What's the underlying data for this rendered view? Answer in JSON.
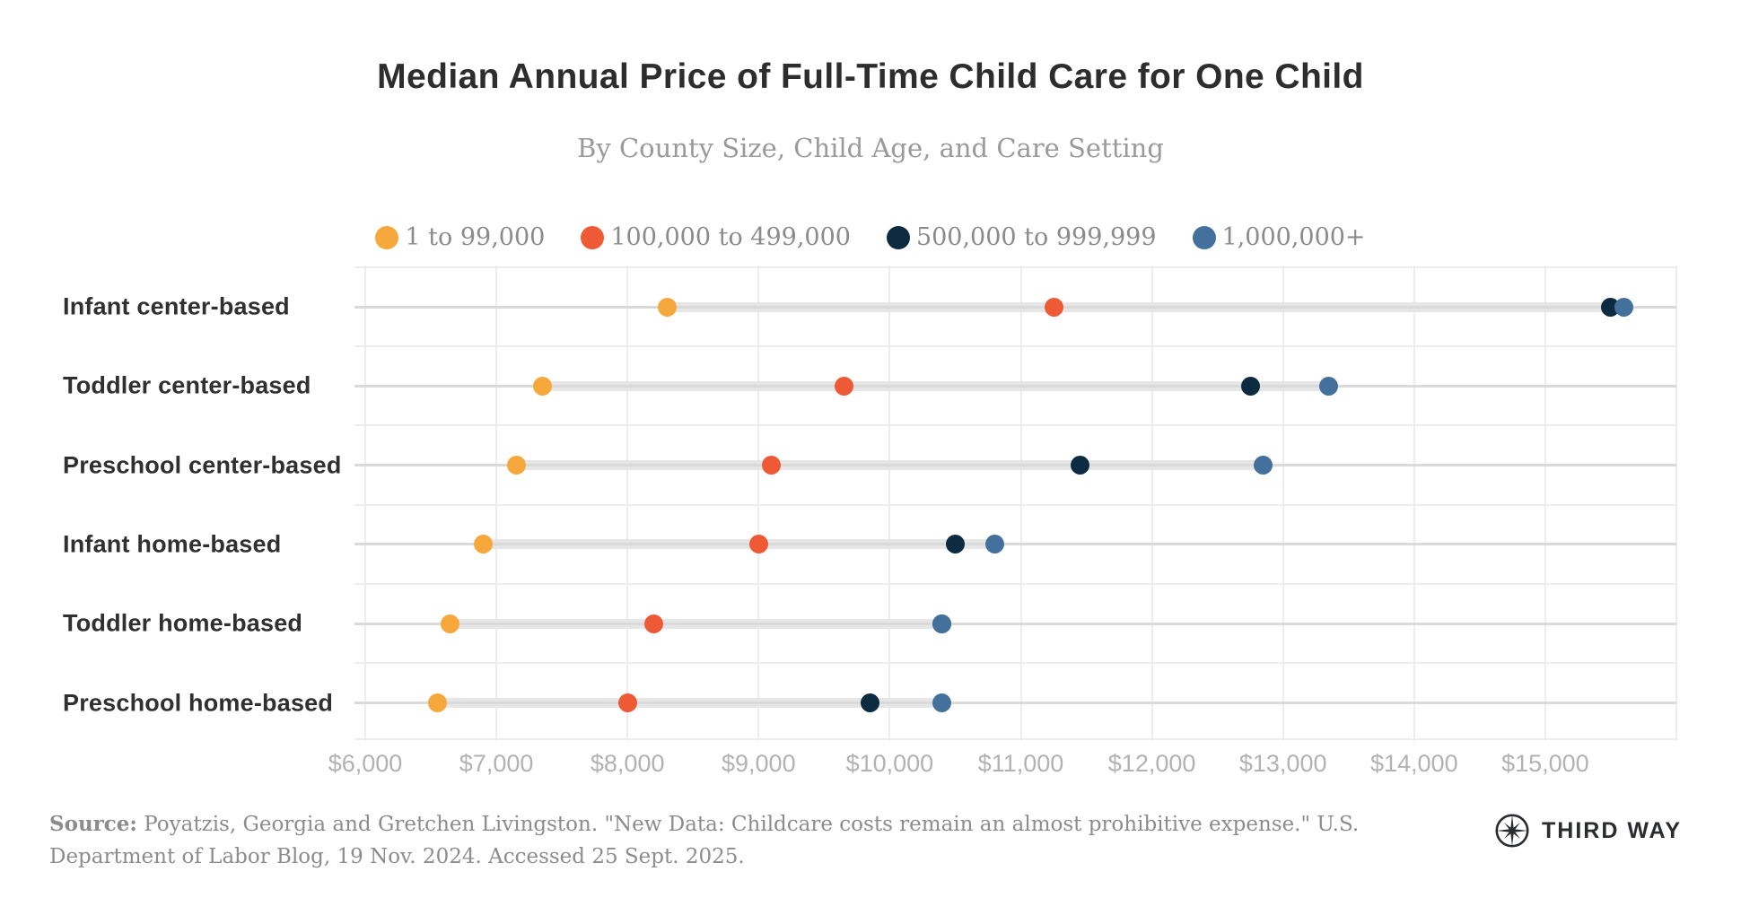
{
  "chart_data": {
    "type": "dumbbell-dot-plot",
    "title": "Median Annual Price of Full-Time Child Care for One Child",
    "subtitle": "By County Size, Child Age, and Care Setting",
    "categories": [
      "Infant center-based",
      "Toddler center-based",
      "Preschool center-based",
      "Infant home-based",
      "Toddler home-based",
      "Preschool home-based"
    ],
    "series": [
      {
        "name": "1 to 99,000",
        "color": "#F6A83C",
        "values": [
          8300,
          7350,
          7150,
          6900,
          6650,
          6550
        ]
      },
      {
        "name": "100,000 to 499,000",
        "color": "#EE5A35",
        "values": [
          11250,
          9650,
          9100,
          9000,
          8200,
          8000
        ]
      },
      {
        "name": "500,000 to 999,999",
        "color": "#0D2B40",
        "values": [
          15500,
          12750,
          11450,
          10500,
          10400,
          9850
        ]
      },
      {
        "name": "1,000,000+",
        "color": "#44719B",
        "values": [
          15600,
          13350,
          12850,
          10800,
          10400,
          10400
        ]
      }
    ],
    "xlim": [
      6000,
      16000
    ],
    "x_ticks": {
      "values": [
        6000,
        7000,
        8000,
        9000,
        10000,
        11000,
        12000,
        13000,
        14000,
        15000
      ],
      "labels": [
        "$6,000",
        "$7,000",
        "$8,000",
        "$9,000",
        "$10,000",
        "$11,000",
        "$12,000",
        "$13,000",
        "$14,000",
        "$15,000"
      ]
    },
    "grid": true,
    "legend_position": "top-center",
    "connector_color": "#e6e6e6"
  },
  "footer": {
    "source_label": "Source:",
    "source_text": " Poyatzis, Georgia and Gretchen Livingston. \"New Data: Childcare costs remain an almost prohibitive expense.\" U.S. Department of Labor Blog, 19 Nov. 2024. Accessed 25 Sept. 2025.",
    "logo_text": "THIRD WAY"
  }
}
